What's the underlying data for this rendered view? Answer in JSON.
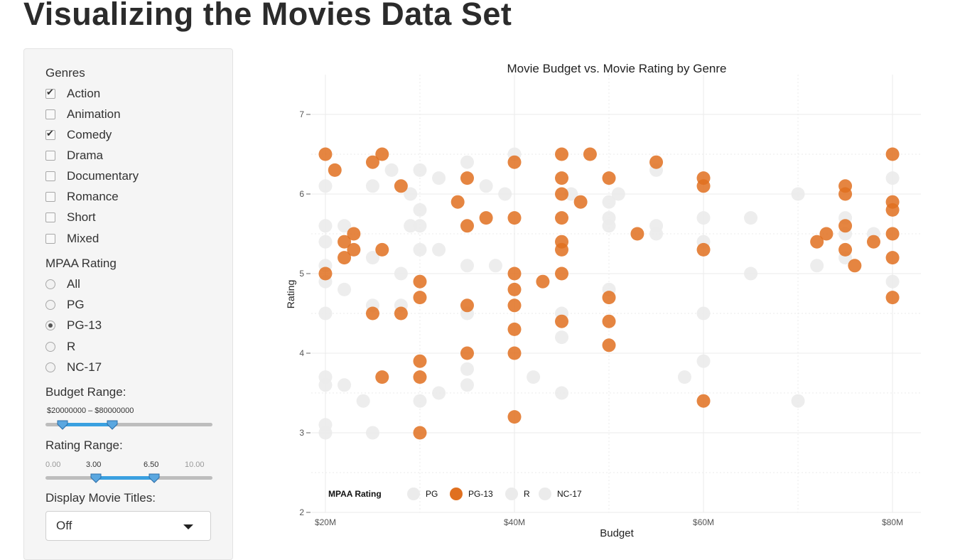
{
  "page": {
    "title": "Visualizing the Movies Data Set"
  },
  "sidebar": {
    "genres_label": "Genres",
    "genres": [
      {
        "label": "Action",
        "checked": true
      },
      {
        "label": "Animation",
        "checked": false
      },
      {
        "label": "Comedy",
        "checked": true
      },
      {
        "label": "Drama",
        "checked": false
      },
      {
        "label": "Documentary",
        "checked": false
      },
      {
        "label": "Romance",
        "checked": false
      },
      {
        "label": "Short",
        "checked": false
      },
      {
        "label": "Mixed",
        "checked": false
      }
    ],
    "mpaa_label": "MPAA Rating",
    "mpaa_options": [
      {
        "label": "All",
        "checked": false
      },
      {
        "label": "PG",
        "checked": false
      },
      {
        "label": "PG-13",
        "checked": true
      },
      {
        "label": "R",
        "checked": false
      },
      {
        "label": "NC-17",
        "checked": false
      }
    ],
    "budget": {
      "label": "Budget Range:",
      "value_text": "$20000000 – $80000000",
      "min": 0,
      "max": 200000000,
      "low": 20000000,
      "high": 80000000
    },
    "rating": {
      "label": "Rating Range:",
      "min_label": "0.00",
      "low_label": "3.00",
      "high_label": "6.50",
      "max_label": "10.00",
      "min": 0,
      "max": 10,
      "low": 3.0,
      "high": 6.5
    },
    "display_titles": {
      "label": "Display Movie Titles:",
      "selected": "Off"
    }
  },
  "colors": {
    "highlight": "#e07020",
    "muted": "#ebebeb",
    "grid": "#ebebeb",
    "slider": "#3aa0e0"
  },
  "chart_data": {
    "type": "scatter",
    "title": "Movie Budget vs. Movie Rating by Genre",
    "xlabel": "Budget",
    "ylabel": "Rating",
    "xlim": [
      18500000,
      83000000
    ],
    "ylim": [
      2,
      7.5
    ],
    "x_ticks": [
      20000000,
      40000000,
      60000000,
      80000000
    ],
    "x_tick_labels": [
      "$20M",
      "$40M",
      "$60M",
      "$80M"
    ],
    "y_ticks": [
      2,
      3,
      4,
      5,
      6,
      7
    ],
    "y_tick_labels": [
      "2",
      "3",
      "4",
      "5",
      "6",
      "7"
    ],
    "legend": {
      "title": "MPAA Rating",
      "position": "bottom-left",
      "entries": [
        {
          "label": "PG",
          "highlight": false
        },
        {
          "label": "PG-13",
          "highlight": true
        },
        {
          "label": "R",
          "highlight": false
        },
        {
          "label": "NC-17",
          "highlight": false
        }
      ]
    },
    "series": [
      {
        "name": "PG-13",
        "highlight": true,
        "points": [
          [
            20,
            6.5
          ],
          [
            21,
            6.3
          ],
          [
            25,
            6.4
          ],
          [
            26,
            6.5
          ],
          [
            28,
            6.1
          ],
          [
            22,
            5.4
          ],
          [
            22,
            5.2
          ],
          [
            23,
            5.5
          ],
          [
            23,
            5.3
          ],
          [
            26,
            5.3
          ],
          [
            20,
            5.0
          ],
          [
            25,
            4.5
          ],
          [
            28,
            4.5
          ],
          [
            30,
            4.9
          ],
          [
            30,
            4.7
          ],
          [
            30,
            3.9
          ],
          [
            30,
            3.7
          ],
          [
            30,
            3.0
          ],
          [
            26,
            3.7
          ],
          [
            34,
            5.9
          ],
          [
            35,
            6.2
          ],
          [
            35,
            5.6
          ],
          [
            35,
            4.6
          ],
          [
            35,
            4.0
          ],
          [
            37,
            5.7
          ],
          [
            40,
            6.4
          ],
          [
            40,
            5.7
          ],
          [
            40,
            5.0
          ],
          [
            40,
            4.8
          ],
          [
            40,
            4.6
          ],
          [
            40,
            4.3
          ],
          [
            40,
            4.0
          ],
          [
            40,
            3.2
          ],
          [
            43,
            4.9
          ],
          [
            45,
            6.5
          ],
          [
            45,
            6.2
          ],
          [
            45,
            6.0
          ],
          [
            45,
            5.7
          ],
          [
            45,
            5.4
          ],
          [
            45,
            5.3
          ],
          [
            45,
            5.0
          ],
          [
            45,
            4.4
          ],
          [
            47,
            5.9
          ],
          [
            48,
            6.5
          ],
          [
            50,
            6.2
          ],
          [
            50,
            4.7
          ],
          [
            50,
            4.4
          ],
          [
            50,
            4.1
          ],
          [
            53,
            5.5
          ],
          [
            55,
            6.4
          ],
          [
            60,
            6.2
          ],
          [
            60,
            6.1
          ],
          [
            60,
            5.3
          ],
          [
            60,
            3.4
          ],
          [
            72,
            5.4
          ],
          [
            73,
            5.5
          ],
          [
            75,
            6.1
          ],
          [
            75,
            6.0
          ],
          [
            75,
            5.6
          ],
          [
            75,
            5.3
          ],
          [
            76,
            5.1
          ],
          [
            78,
            5.4
          ],
          [
            80,
            6.5
          ],
          [
            80,
            5.9
          ],
          [
            80,
            5.8
          ],
          [
            80,
            5.5
          ],
          [
            80,
            5.2
          ],
          [
            80,
            4.7
          ]
        ]
      },
      {
        "name": "Other",
        "highlight": false,
        "points": [
          [
            20,
            6.1
          ],
          [
            20,
            5.6
          ],
          [
            20,
            5.4
          ],
          [
            20,
            5.1
          ],
          [
            20,
            4.9
          ],
          [
            20,
            4.5
          ],
          [
            20,
            3.7
          ],
          [
            20,
            3.6
          ],
          [
            20,
            3.1
          ],
          [
            20,
            3.0
          ],
          [
            22,
            5.6
          ],
          [
            22,
            4.8
          ],
          [
            22,
            3.6
          ],
          [
            24,
            3.4
          ],
          [
            25,
            6.1
          ],
          [
            25,
            5.2
          ],
          [
            25,
            4.6
          ],
          [
            25,
            3.0
          ],
          [
            27,
            6.3
          ],
          [
            28,
            5.0
          ],
          [
            28,
            4.6
          ],
          [
            29,
            6.0
          ],
          [
            29,
            5.6
          ],
          [
            30,
            6.3
          ],
          [
            30,
            5.8
          ],
          [
            30,
            5.6
          ],
          [
            30,
            5.3
          ],
          [
            30,
            3.4
          ],
          [
            32,
            6.2
          ],
          [
            32,
            5.3
          ],
          [
            32,
            3.5
          ],
          [
            35,
            6.4
          ],
          [
            35,
            5.1
          ],
          [
            35,
            4.5
          ],
          [
            35,
            3.8
          ],
          [
            35,
            3.6
          ],
          [
            37,
            6.1
          ],
          [
            38,
            5.1
          ],
          [
            39,
            6.0
          ],
          [
            40,
            6.5
          ],
          [
            42,
            3.7
          ],
          [
            45,
            4.5
          ],
          [
            45,
            4.2
          ],
          [
            45,
            3.5
          ],
          [
            46,
            6.0
          ],
          [
            50,
            5.9
          ],
          [
            50,
            5.7
          ],
          [
            50,
            5.6
          ],
          [
            50,
            4.8
          ],
          [
            51,
            6.0
          ],
          [
            55,
            6.3
          ],
          [
            55,
            5.6
          ],
          [
            55,
            5.5
          ],
          [
            58,
            3.7
          ],
          [
            60,
            5.7
          ],
          [
            60,
            5.4
          ],
          [
            60,
            4.5
          ],
          [
            60,
            3.9
          ],
          [
            65,
            5.7
          ],
          [
            65,
            5.0
          ],
          [
            70,
            6.0
          ],
          [
            70,
            3.4
          ],
          [
            72,
            5.1
          ],
          [
            75,
            5.7
          ],
          [
            75,
            5.5
          ],
          [
            75,
            5.2
          ],
          [
            78,
            5.5
          ],
          [
            80,
            6.2
          ],
          [
            80,
            4.9
          ]
        ]
      }
    ]
  }
}
